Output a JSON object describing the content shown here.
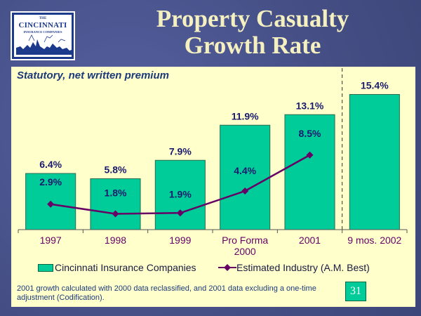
{
  "logo": {
    "the": "THE",
    "name": "CINCINNATI",
    "sub": "INSURANCE COMPANIES"
  },
  "title_line1": "Property Casualty",
  "title_line2": "Growth Rate",
  "subtitle": "Statutory, net written premium",
  "footnote": "2001 growth calculated with 2000 data reclassified, and 2001 data excluding a one-time adjustment (Codification).",
  "page_number": "31",
  "colors": {
    "bar": "#00cc99",
    "line": "#660066",
    "panel": "#ffffcc",
    "label": "#1a1a6e",
    "tick": "#660066"
  },
  "chart_data": {
    "type": "bar",
    "title": "Property Casualty Growth Rate",
    "subtitle": "Statutory, net written premium",
    "categories": [
      [
        "1997"
      ],
      [
        "1998"
      ],
      [
        "1999"
      ],
      [
        "Pro Forma",
        "2000"
      ],
      [
        "2001"
      ],
      [
        "9 mos. 2002"
      ]
    ],
    "series": [
      {
        "name": "Cincinnati Insurance Companies",
        "type": "bar",
        "values": [
          6.4,
          5.8,
          7.9,
          11.9,
          13.1,
          15.4
        ],
        "labels": [
          "6.4%",
          "5.8%",
          "7.9%",
          "11.9%",
          "13.1%",
          "15.4%"
        ]
      },
      {
        "name": "Estimated Industry (A.M. Best)",
        "type": "line",
        "values": [
          2.9,
          1.8,
          1.9,
          4.4,
          8.5,
          null
        ],
        "labels": [
          "2.9%",
          "1.8%",
          "1.9%",
          "4.4%",
          "8.5%",
          null
        ]
      }
    ],
    "ylim": [
      0,
      16
    ],
    "xlabel": "",
    "ylabel": "",
    "grid": false,
    "legend": "bottom",
    "separator_before_category": 5
  }
}
